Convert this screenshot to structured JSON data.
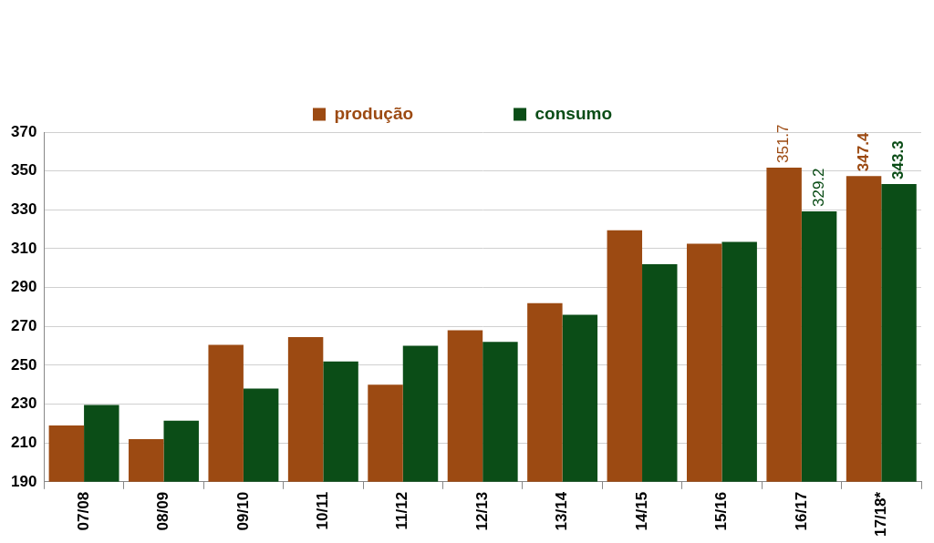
{
  "chart_data": {
    "type": "bar",
    "categories": [
      "07/08",
      "08/09",
      "09/10",
      "10/11",
      "11/12",
      "12/13",
      "13/14",
      "14/15",
      "15/16",
      "16/17",
      "17/18*"
    ],
    "series": [
      {
        "name": "produção",
        "color": "#9c4a12",
        "values": [
          219,
          212,
          260.5,
          264.5,
          240,
          268,
          282,
          319.5,
          312.5,
          351.7,
          347.4
        ],
        "value_labels": [
          null,
          null,
          null,
          null,
          null,
          null,
          null,
          null,
          null,
          "351.7",
          "347.4"
        ]
      },
      {
        "name": "consumo",
        "color": "#0b4d17",
        "values": [
          229.5,
          221.5,
          238,
          252,
          260,
          262,
          276,
          302,
          313.5,
          329.2,
          343.3
        ],
        "value_labels": [
          null,
          null,
          null,
          null,
          null,
          null,
          null,
          null,
          null,
          "329.2",
          "343.3"
        ]
      }
    ],
    "ylim": [
      190,
      370
    ],
    "yticks": [
      190,
      210,
      230,
      250,
      270,
      290,
      310,
      330,
      350,
      370
    ],
    "grid": true,
    "legend": "top"
  }
}
